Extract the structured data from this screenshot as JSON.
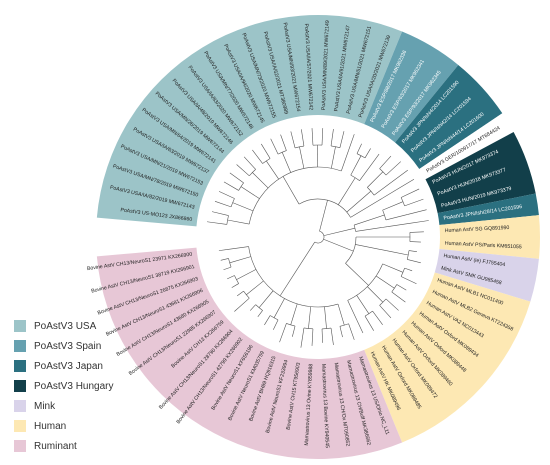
{
  "legend": [
    {
      "label": "PoAstV3 USA",
      "color": "#9cc4c8"
    },
    {
      "label": "PoAstV3 Spain",
      "color": "#66a1b0"
    },
    {
      "label": "PoAstV3 Japan",
      "color": "#2b7080"
    },
    {
      "label": "PoAstV3 Hungary",
      "color": "#123f4a"
    },
    {
      "label": "Mink",
      "color": "#d9d3ea"
    },
    {
      "label": "Human",
      "color": "#fde8b3"
    },
    {
      "label": "Ruminant",
      "color": "#e7c7d6"
    }
  ],
  "clades": [
    {
      "group": "PoAstV3 USA",
      "color": "#9cc4c8",
      "leaves": [
        "PoAstV3 US-MO123 JX866860",
        "PoAstV3 USA/IA/82/2019 MW672143",
        "PoAstV3 USA/MN/78/2019 MW672150",
        "PoAstV3 USA/MN/21/2019 MW672153",
        "PoAstV3 USA/IA/63/2019 MW672137",
        "PoAstV3 USA/MN/64/2019 MW672141",
        "PoAstV3 USA/MN/26/2019 MW672144",
        "PoAstV3 USA/IA/48/2019 MW672146",
        "PoAstV3 USA/IA/83/2020 MW672152",
        "PoAstV3 USA/MN/77/2020 MW672148",
        "PoAstV3 USA/IA/94/2020 MW672145",
        "PoAstV3 USA/MN/73/2020 MW672155",
        "PoAstV3 USA/IA/62/2021 MT380989",
        "PoAstV3 USA/MN/93/2021 MW672154",
        "PoAstV3 USA/IA/57/2021 MW672142",
        "PoAstV3 USA/MN/89/2021 MW672149",
        "PoAstV3 USA/IA/91/2021 MW672147",
        "PoAstV3 USA/MN/51/2021 MW672151",
        "PoAstV3 USA/IA/20/2021 MW672139"
      ]
    },
    {
      "group": "PoAstV3 Spain",
      "color": "#66a1b0",
      "leaves": [
        "PoAstV3 ESP/88/2017 MK962336",
        "PoAstV3 ESP/63/2017 MK962341",
        "PoAstV3 ESP/93/2017 MK962345"
      ]
    },
    {
      "group": "PoAstV3 Japan",
      "color": "#2b7080",
      "leaves": [
        "PoAstV3 JPN/Ishi4/2014 LC201590",
        "PoAstV3 JPN/Ishi42/14 LC201594",
        "PoAstV3 JPN/Ishi44/14 LC201600"
      ]
    },
    {
      "group": "Other",
      "color": "#ffffff",
      "leaves": [
        "PoAstV3 GER/100917/17 MT684424"
      ]
    },
    {
      "group": "PoAstV3 Hungary",
      "color": "#123f4a",
      "leaves": [
        "PoAstV3 HUN/2017 MK973374",
        "PoAstV3 HUN/2018 MK973377",
        "PoAstV3 HUN/2019 MK973379"
      ]
    },
    {
      "group": "PoAstV3 Japan",
      "color": "#2b7080",
      "leaves": [
        "PoAstV3 JPN/Ishi28/14 LC201596"
      ]
    },
    {
      "group": "Human",
      "color": "#fde8b3",
      "leaves": [
        "Human AstV SG GQ891990",
        "Human AstV PS/Paris KM651055"
      ]
    },
    {
      "group": "Mink",
      "color": "#d9d3ea",
      "leaves": [
        "Human AstV (ie) FJ755404",
        "Mink AstV SMK GU985458"
      ]
    },
    {
      "group": "Human",
      "color": "#fde8b3",
      "leaves": [
        "Human AstV MLB1 NC011400",
        "Human AstV MLB2 Geneva KT224358",
        "Human AstV VA2 NC013443",
        "Human AstV Oxford MK089434",
        "Human AstV Oxford MK089448",
        "Human AstV Oxford MK089460",
        "Human AstV Oxford MK089472",
        "Human AstV Oxford MK089485",
        "Human AstV HK MK089496"
      ]
    },
    {
      "group": "Ruminant",
      "color": "#e7c7d6",
      "leaves": [
        "Mamastrovirus 13 US/Ohio NC_L11",
        "Mamastrovirus 13 CH/Buff MK386562",
        "Mamastrovirus 13 CH/Ox MT090852",
        "Mamastrovirus 13 Bovine KY940545",
        "Mamastrovirus 13 Ovine KY859988",
        "Bovine AstV CH15 KT956903",
        "Bovine AstV NeuroS1 KF233994",
        "Bovine AstV BH89 HQ916315",
        "Bovine AstV NeuroS1 KM035759",
        "Bovine AstV NeuroS1 KF656196",
        "Bovine AstV CH13/NeuroS1 42799 KX266902",
        "Bovine AstV CH13/NeuroS1 28790 KX266904",
        "Bovine AstV CH13 KX266759",
        "Bovine AstV CH13/NeuroS1 22985 KX266907",
        "Bovine AstV CH13/NeuroS1 43680 KX266905",
        "Bovine AstV CH13/NeuroS1 43681 KX266906",
        "Bovine AstV CH13/NeuroS1 26875 KX266903",
        "Bovine AstV CH13/NeuroS1 38719 KX266901",
        "Bovine AstV CH13/NeuroS1 23971 KX266900"
      ]
    }
  ]
}
